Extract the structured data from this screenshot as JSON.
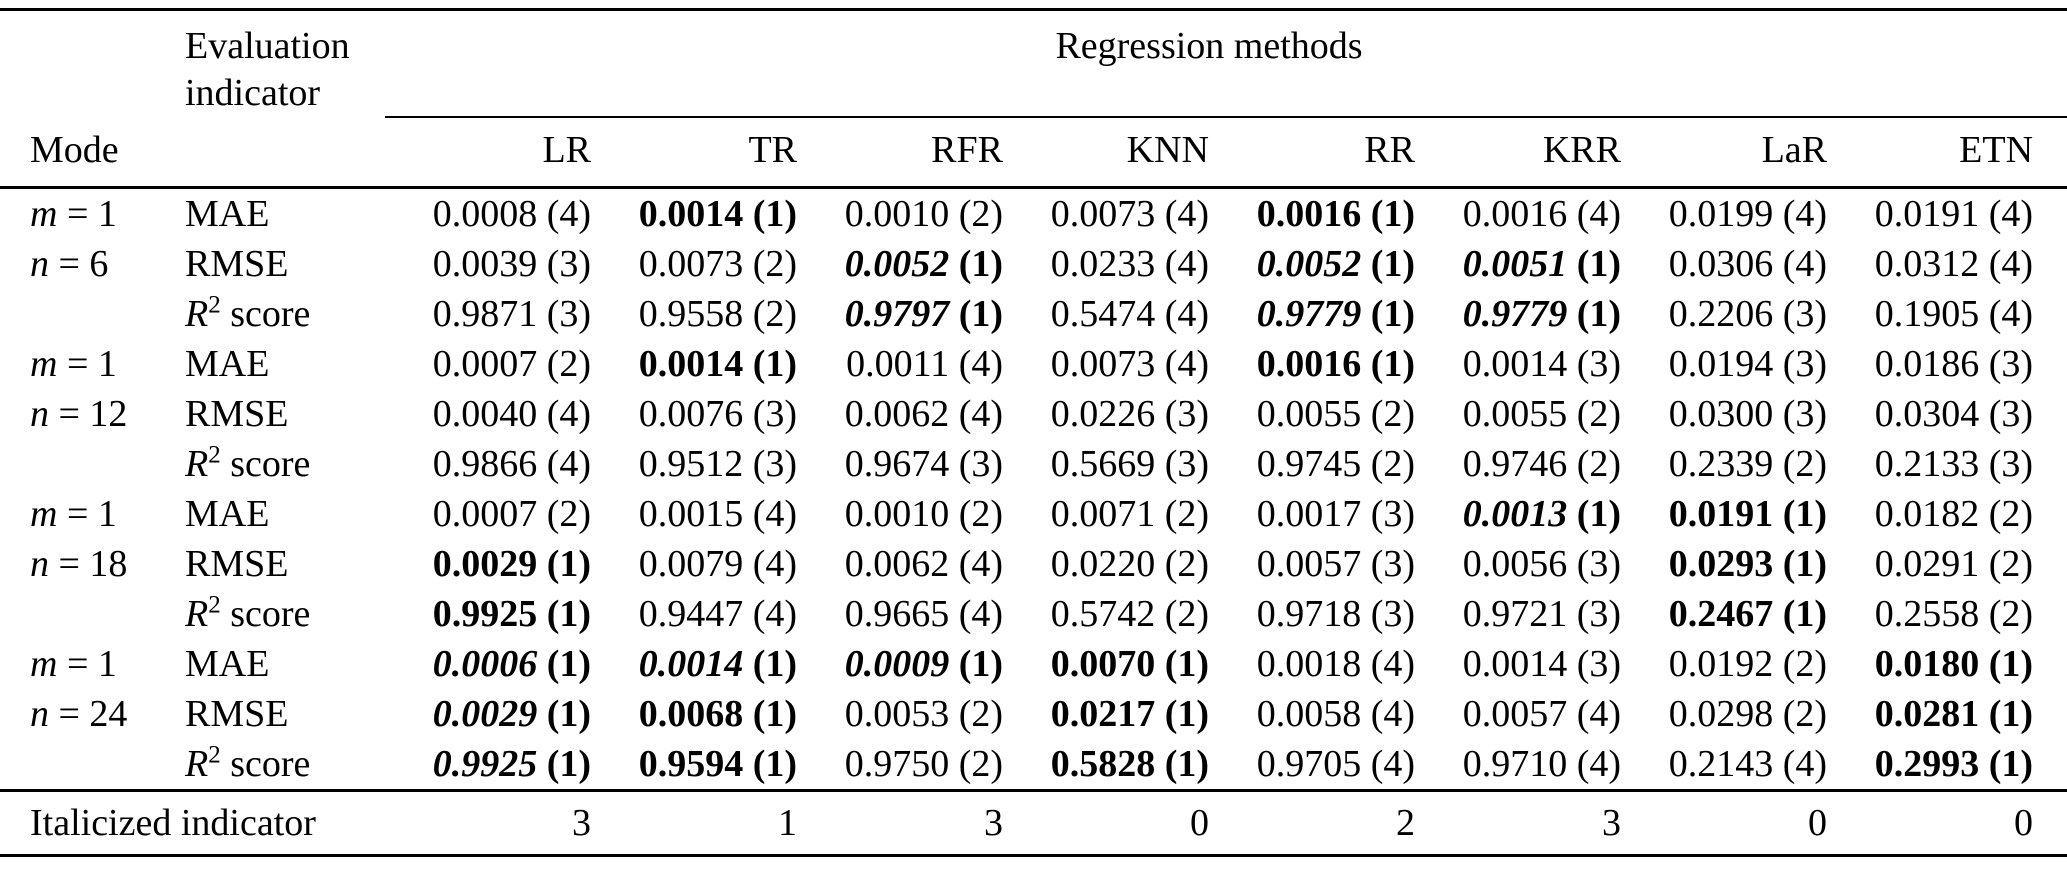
{
  "page": {
    "background_color": "#ffffff",
    "text_color": "#000000"
  },
  "table": {
    "title_row": {
      "indicator_header": "Evaluation indicator",
      "methods_group_header": "Regression methods"
    },
    "columns": {
      "mode_header": "Mode",
      "methods": [
        "LR",
        "TR",
        "RFR",
        "KNN",
        "RR",
        "KRR",
        "LaR",
        "ETN"
      ]
    },
    "style_key": {
      "n": "normal",
      "b": "bold",
      "bi": "bold-italic"
    },
    "groups": [
      {
        "mode": [
          "m = 1",
          "n = 6"
        ],
        "rows": [
          {
            "indicator": "MAE",
            "cells": [
              [
                "0.0008",
                "4",
                "n"
              ],
              [
                "0.0014",
                "1",
                "b"
              ],
              [
                "0.0010",
                "2",
                "n"
              ],
              [
                "0.0073",
                "4",
                "n"
              ],
              [
                "0.0016",
                "1",
                "b"
              ],
              [
                "0.0016",
                "4",
                "n"
              ],
              [
                "0.0199",
                "4",
                "n"
              ],
              [
                "0.0191",
                "4",
                "n"
              ]
            ]
          },
          {
            "indicator": "RMSE",
            "cells": [
              [
                "0.0039",
                "3",
                "n"
              ],
              [
                "0.0073",
                "2",
                "n"
              ],
              [
                "0.0052",
                "1",
                "bi"
              ],
              [
                "0.0233",
                "4",
                "n"
              ],
              [
                "0.0052",
                "1",
                "bi"
              ],
              [
                "0.0051",
                "1",
                "bi"
              ],
              [
                "0.0306",
                "4",
                "n"
              ],
              [
                "0.0312",
                "4",
                "n"
              ]
            ]
          },
          {
            "indicator": "R² score",
            "cells": [
              [
                "0.9871",
                "3",
                "n"
              ],
              [
                "0.9558",
                "2",
                "n"
              ],
              [
                "0.9797",
                "1",
                "bi"
              ],
              [
                "0.5474",
                "4",
                "n"
              ],
              [
                "0.9779",
                "1",
                "bi"
              ],
              [
                "0.9779",
                "1",
                "bi"
              ],
              [
                "0.2206",
                "3",
                "n"
              ],
              [
                "0.1905",
                "4",
                "n"
              ]
            ]
          }
        ]
      },
      {
        "mode": [
          "m = 1",
          "n = 12"
        ],
        "rows": [
          {
            "indicator": "MAE",
            "cells": [
              [
                "0.0007",
                "2",
                "n"
              ],
              [
                "0.0014",
                "1",
                "b"
              ],
              [
                "0.0011",
                "4",
                "n"
              ],
              [
                "0.0073",
                "4",
                "n"
              ],
              [
                "0.0016",
                "1",
                "b"
              ],
              [
                "0.0014",
                "3",
                "n"
              ],
              [
                "0.0194",
                "3",
                "n"
              ],
              [
                "0.0186",
                "3",
                "n"
              ]
            ]
          },
          {
            "indicator": "RMSE",
            "cells": [
              [
                "0.0040",
                "4",
                "n"
              ],
              [
                "0.0076",
                "3",
                "n"
              ],
              [
                "0.0062",
                "4",
                "n"
              ],
              [
                "0.0226",
                "3",
                "n"
              ],
              [
                "0.0055",
                "2",
                "n"
              ],
              [
                "0.0055",
                "2",
                "n"
              ],
              [
                "0.0300",
                "3",
                "n"
              ],
              [
                "0.0304",
                "3",
                "n"
              ]
            ]
          },
          {
            "indicator": "R² score",
            "cells": [
              [
                "0.9866",
                "4",
                "n"
              ],
              [
                "0.9512",
                "3",
                "n"
              ],
              [
                "0.9674",
                "3",
                "n"
              ],
              [
                "0.5669",
                "3",
                "n"
              ],
              [
                "0.9745",
                "2",
                "n"
              ],
              [
                "0.9746",
                "2",
                "n"
              ],
              [
                "0.2339",
                "2",
                "n"
              ],
              [
                "0.2133",
                "3",
                "n"
              ]
            ]
          }
        ]
      },
      {
        "mode": [
          "m = 1",
          "n = 18"
        ],
        "rows": [
          {
            "indicator": "MAE",
            "cells": [
              [
                "0.0007",
                "2",
                "n"
              ],
              [
                "0.0015",
                "4",
                "n"
              ],
              [
                "0.0010",
                "2",
                "n"
              ],
              [
                "0.0071",
                "2",
                "n"
              ],
              [
                "0.0017",
                "3",
                "n"
              ],
              [
                "0.0013",
                "1",
                "bi"
              ],
              [
                "0.0191",
                "1",
                "b"
              ],
              [
                "0.0182",
                "2",
                "n"
              ]
            ]
          },
          {
            "indicator": "RMSE",
            "cells": [
              [
                "0.0029",
                "1",
                "b"
              ],
              [
                "0.0079",
                "4",
                "n"
              ],
              [
                "0.0062",
                "4",
                "n"
              ],
              [
                "0.0220",
                "2",
                "n"
              ],
              [
                "0.0057",
                "3",
                "n"
              ],
              [
                "0.0056",
                "3",
                "n"
              ],
              [
                "0.0293",
                "1",
                "b"
              ],
              [
                "0.0291",
                "2",
                "n"
              ]
            ]
          },
          {
            "indicator": "R² score",
            "cells": [
              [
                "0.9925",
                "1",
                "b"
              ],
              [
                "0.9447",
                "4",
                "n"
              ],
              [
                "0.9665",
                "4",
                "n"
              ],
              [
                "0.5742",
                "2",
                "n"
              ],
              [
                "0.9718",
                "3",
                "n"
              ],
              [
                "0.9721",
                "3",
                "n"
              ],
              [
                "0.2467",
                "1",
                "b"
              ],
              [
                "0.2558",
                "2",
                "n"
              ]
            ]
          }
        ]
      },
      {
        "mode": [
          "m = 1",
          "n = 24"
        ],
        "rows": [
          {
            "indicator": "MAE",
            "cells": [
              [
                "0.0006",
                "1",
                "bi"
              ],
              [
                "0.0014",
                "1",
                "bi"
              ],
              [
                "0.0009",
                "1",
                "bi"
              ],
              [
                "0.0070",
                "1",
                "b"
              ],
              [
                "0.0018",
                "4",
                "n"
              ],
              [
                "0.0014",
                "3",
                "n"
              ],
              [
                "0.0192",
                "2",
                "n"
              ],
              [
                "0.0180",
                "1",
                "b"
              ]
            ]
          },
          {
            "indicator": "RMSE",
            "cells": [
              [
                "0.0029",
                "1",
                "bi"
              ],
              [
                "0.0068",
                "1",
                "b"
              ],
              [
                "0.0053",
                "2",
                "n"
              ],
              [
                "0.0217",
                "1",
                "b"
              ],
              [
                "0.0058",
                "4",
                "n"
              ],
              [
                "0.0057",
                "4",
                "n"
              ],
              [
                "0.0298",
                "2",
                "n"
              ],
              [
                "0.0281",
                "1",
                "b"
              ]
            ]
          },
          {
            "indicator": "R² score",
            "cells": [
              [
                "0.9925",
                "1",
                "bi"
              ],
              [
                "0.9594",
                "1",
                "b"
              ],
              [
                "0.9750",
                "2",
                "n"
              ],
              [
                "0.5828",
                "1",
                "b"
              ],
              [
                "0.9705",
                "4",
                "n"
              ],
              [
                "0.9710",
                "4",
                "n"
              ],
              [
                "0.2143",
                "4",
                "n"
              ],
              [
                "0.2993",
                "1",
                "b"
              ]
            ]
          }
        ]
      }
    ],
    "footer": {
      "label": "Italicized indicator",
      "counts": [
        "3",
        "1",
        "3",
        "0",
        "2",
        "3",
        "0",
        "0"
      ]
    }
  }
}
